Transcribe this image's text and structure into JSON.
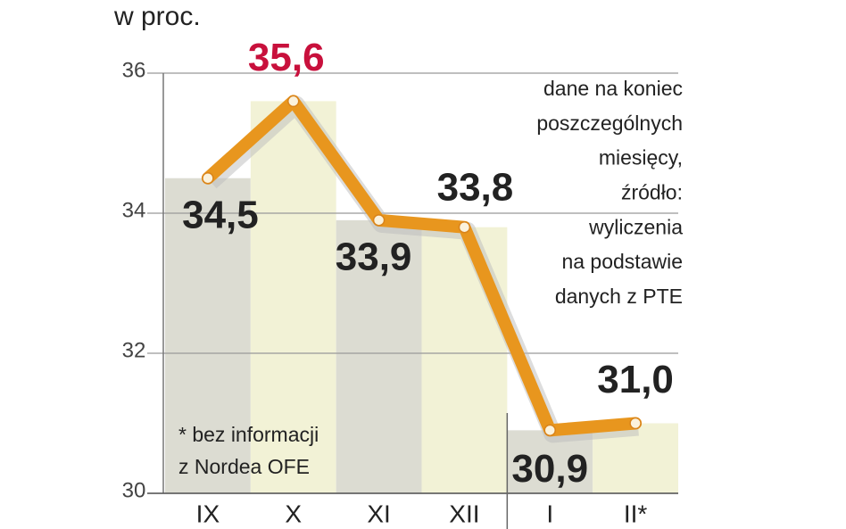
{
  "chart_data": {
    "type": "line",
    "unit_label": "w proc.",
    "categories": [
      "IX",
      "X",
      "XI",
      "XII",
      "I",
      "II*"
    ],
    "series": [
      {
        "color": "#e8961e",
        "values": [
          34.5,
          35.6,
          33.9,
          33.8,
          30.9,
          31.0
        ],
        "value_labels": [
          "34,5",
          "35,6",
          "33,9",
          "33,8",
          "30,9",
          "31,0"
        ],
        "value_label_colors": [
          "#222222",
          "#c8103c",
          "#222222",
          "#222222",
          "#222222",
          "#222222"
        ]
      }
    ],
    "column_colors": [
      "#dcdcd2",
      "#f2f2d6"
    ],
    "ylim": [
      30,
      36
    ],
    "yticks": [
      30,
      32,
      34,
      36
    ],
    "grid": true,
    "note": [
      "dane na koniec",
      "poszczególnych",
      "miesięcy,",
      "źródło:",
      "wyliczenia",
      "na podstawie",
      "danych z PTE"
    ],
    "footnote": [
      "* bez informacji",
      "z Nordea OFE"
    ]
  }
}
